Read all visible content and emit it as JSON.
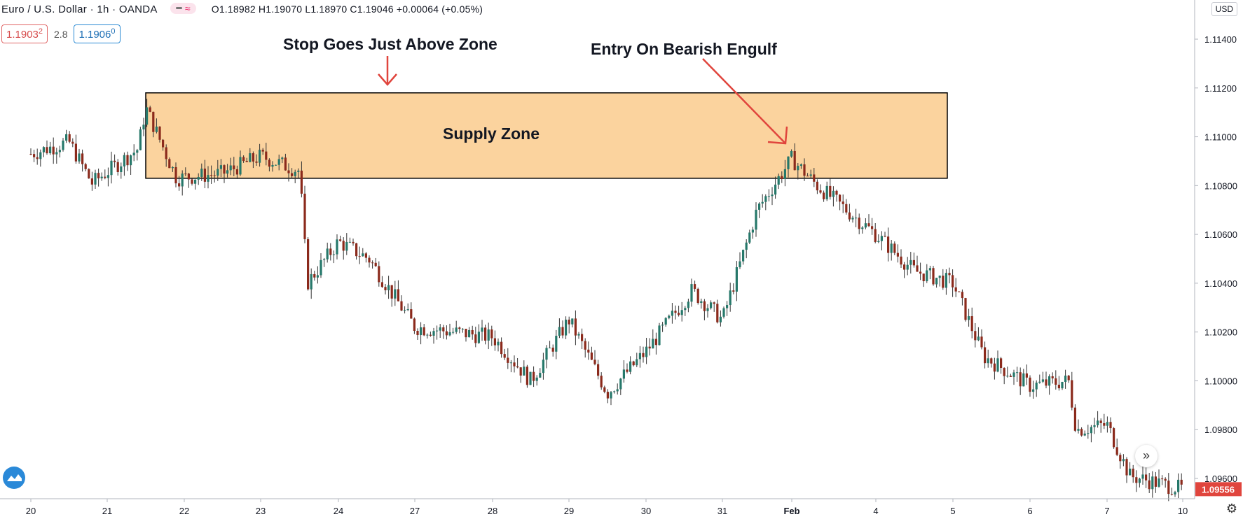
{
  "header": {
    "symbol_title": "Euro / U.S. Dollar · 1h · OANDA",
    "indicator_pill": "≈",
    "ohlc": "O1.18982 H1.19070 L1.18970 C1.19046 +0.00064 (+0.05%)"
  },
  "quote": {
    "bid_main": "1.1903",
    "bid_frac": "2",
    "spread": "2.8",
    "ask_main": "1.1906",
    "ask_frac": "0"
  },
  "currency_button": "USD",
  "last_price_label": "1.09556",
  "colors": {
    "up_candle": "#26786a",
    "down_candle": "#8b2a1c",
    "zone_fill": "#fbd39e",
    "arrow": "#e0453d",
    "last_price": "#e0453d"
  },
  "chart_data": {
    "type": "candlestick",
    "title": "",
    "y_axis": {
      "range": [
        1.0955,
        1.1147
      ],
      "ticks": [
        "1.09600",
        "1.09800",
        "1.10000",
        "1.10200",
        "1.10400",
        "1.10600",
        "1.10800",
        "1.11000",
        "1.11200",
        "1.11400"
      ]
    },
    "x_axis": {
      "ticks": [
        "20",
        "21",
        "22",
        "23",
        "24",
        "27",
        "28",
        "29",
        "30",
        "31",
        "Feb",
        "4",
        "5",
        "6",
        "7",
        "10"
      ]
    },
    "price_path_keypoints": [
      {
        "x": "20",
        "price": 1.1093
      },
      {
        "x": "20.5",
        "price": 1.1098
      },
      {
        "x": "20.8",
        "price": 1.1081
      },
      {
        "x": "21.4",
        "price": 1.1095
      },
      {
        "x": "21.5",
        "price": 1.1112
      },
      {
        "x": "21.9",
        "price": 1.1083
      },
      {
        "x": "22.5",
        "price": 1.1085
      },
      {
        "x": "23.0",
        "price": 1.1092
      },
      {
        "x": "23.5",
        "price": 1.1086
      },
      {
        "x": "23.6",
        "price": 1.104
      },
      {
        "x": "24",
        "price": 1.1057
      },
      {
        "x": "24.4",
        "price": 1.105
      },
      {
        "x": "27",
        "price": 1.1022
      },
      {
        "x": "28",
        "price": 1.1018
      },
      {
        "x": "28.5",
        "price": 1.1
      },
      {
        "x": "29",
        "price": 1.1025
      },
      {
        "x": "29.5",
        "price": 1.0995
      },
      {
        "x": "30",
        "price": 1.1012
      },
      {
        "x": "30.6",
        "price": 1.1037
      },
      {
        "x": "31",
        "price": 1.1025
      },
      {
        "x": "31.5",
        "price": 1.107
      },
      {
        "x": "Feb",
        "price": 1.1091
      },
      {
        "x": "Feb.3",
        "price": 1.108
      },
      {
        "x": "4",
        "price": 1.106
      },
      {
        "x": "4.5",
        "price": 1.1045
      },
      {
        "x": "5",
        "price": 1.104
      },
      {
        "x": "5.4",
        "price": 1.101
      },
      {
        "x": "6",
        "price": 1.0998
      },
      {
        "x": "6.5",
        "price": 1.1
      },
      {
        "x": "6.6",
        "price": 1.098
      },
      {
        "x": "7",
        "price": 1.0982
      },
      {
        "x": "7.3",
        "price": 1.0961
      },
      {
        "x": "10",
        "price": 1.09556
      }
    ],
    "supply_zone": {
      "from": "21.5",
      "to": "5",
      "top": 1.1118,
      "bottom": 1.1083,
      "label": "Supply Zone"
    },
    "annotations": [
      {
        "text": "Stop Goes Just Above Zone",
        "points_to": "zone top"
      },
      {
        "text": "Entry On Bearish Engulf",
        "points_to": "candle near Feb"
      }
    ],
    "last_price": 1.09556
  }
}
